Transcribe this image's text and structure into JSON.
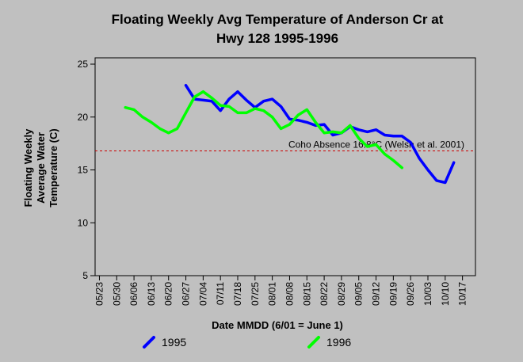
{
  "chart_data": {
    "type": "line",
    "title": [
      "Floating Weekly Avg Temperature of Anderson Cr at",
      "Hwy 128 1995-1996"
    ],
    "ylabel": [
      "Floating Weekly",
      "Average Water",
      "Temperature (C)"
    ],
    "xlabel": "Date MMDD (6/01 = June 1)",
    "categories": [
      "05/23",
      null,
      "05/30",
      null,
      "06/06",
      null,
      "06/13",
      null,
      "06/20",
      null,
      "06/27",
      null,
      "07/04",
      null,
      "07/11",
      null,
      "07/18",
      null,
      "07/25",
      null,
      "08/01",
      null,
      "08/08",
      null,
      "08/15",
      null,
      "08/22",
      null,
      "08/29",
      null,
      "09/05",
      null,
      "09/12",
      null,
      "09/19",
      null,
      "09/26",
      null,
      "10/03",
      null,
      "10/10",
      null,
      "10/17",
      null
    ],
    "series": [
      {
        "name": "1995",
        "color": "#0000ff",
        "values": [
          null,
          null,
          null,
          null,
          null,
          null,
          null,
          null,
          null,
          null,
          23.0,
          21.7,
          21.6,
          21.5,
          20.6,
          21.7,
          22.4,
          21.6,
          20.9,
          21.5,
          21.7,
          21.0,
          19.8,
          19.7,
          19.5,
          19.2,
          19.3,
          18.3,
          18.5,
          19.1,
          18.8,
          18.6,
          18.8,
          18.3,
          18.2,
          18.2,
          17.6,
          16.1,
          15.0,
          14.0,
          13.8,
          15.7,
          null,
          null
        ]
      },
      {
        "name": "1996",
        "color": "#00ff00",
        "values": [
          null,
          null,
          null,
          20.9,
          20.7,
          20.0,
          19.5,
          18.9,
          18.5,
          18.9,
          20.4,
          21.9,
          22.4,
          21.8,
          21.1,
          21.0,
          20.4,
          20.4,
          20.8,
          20.6,
          20.0,
          18.9,
          19.3,
          20.2,
          20.7,
          19.5,
          18.5,
          18.6,
          18.5,
          19.2,
          18.0,
          17.2,
          17.4,
          16.5,
          15.9,
          15.2,
          null,
          null,
          null,
          null,
          null,
          null,
          null,
          null
        ]
      }
    ],
    "ylim": [
      5,
      25.6
    ],
    "yticks": [
      5,
      10,
      15,
      20,
      25
    ],
    "grid": false,
    "reference_lines": [
      {
        "value": 16.8,
        "label": "Coho Absence 16.8°C (Welsh et al. 2001)",
        "color": "#cc0000"
      }
    ],
    "legend": "bottom"
  }
}
